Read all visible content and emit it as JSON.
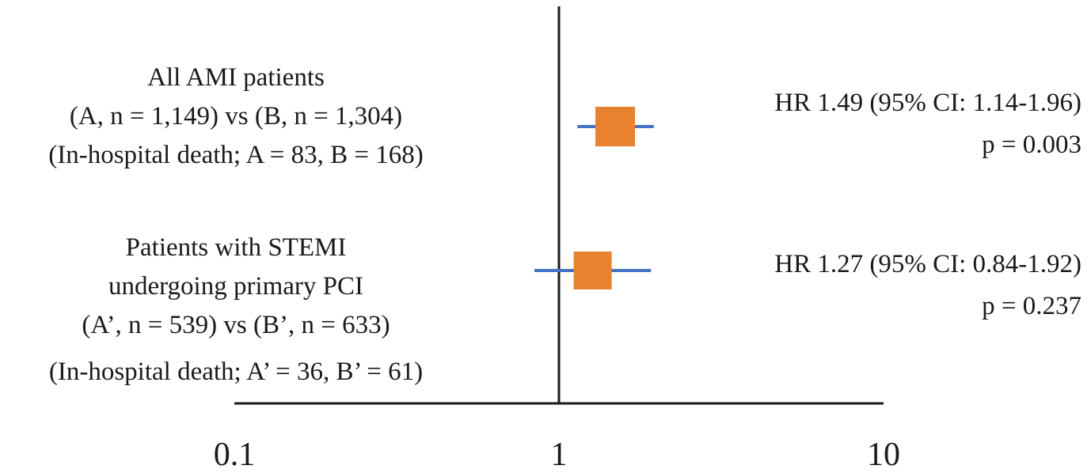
{
  "chart_data": {
    "type": "forest",
    "x_scale": "log",
    "xlim": [
      0.1,
      10
    ],
    "x_ticks": [
      "0.1",
      "1",
      "10"
    ],
    "reference_line": 1,
    "colors": {
      "point": "#E8822E",
      "ci_line": "#4472C4",
      "axis": "#1a1a1a"
    },
    "rows": [
      {
        "label_lines": [
          "All AMI patients",
          "(A, n = 1,149) vs (B, n = 1,304)",
          "(In-hospital death; A = 83, B = 168)"
        ],
        "hr": 1.49,
        "ci_low": 1.14,
        "ci_high": 1.96,
        "hr_text": "HR 1.49 (95% CI: 1.14-1.96)",
        "p_text": "p = 0.003"
      },
      {
        "label_lines": [
          "Patients with STEMI",
          "undergoing primary PCI",
          "(A’, n = 539) vs (B’, n = 633)",
          "(In-hospital death; A’ = 36, B’ = 61)"
        ],
        "hr": 1.27,
        "ci_low": 0.84,
        "ci_high": 1.92,
        "hr_text": "HR 1.27 (95% CI: 0.84-1.92)",
        "p_text": "p = 0.237"
      }
    ]
  }
}
